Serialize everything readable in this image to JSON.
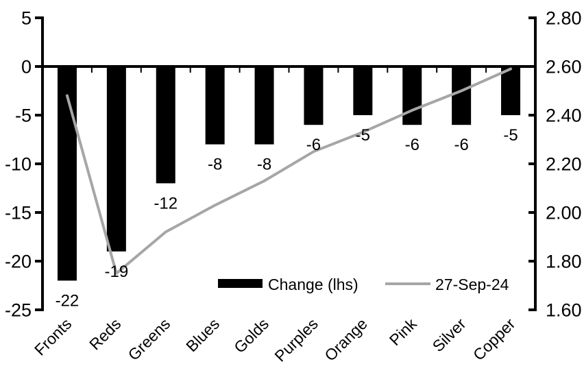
{
  "chart_data": {
    "type": "bar",
    "subtype": "combo-bar-line-dual-axis",
    "background": "#ffffff",
    "grid": false,
    "categories": [
      "Fronts",
      "Reds",
      "Greens",
      "Blues",
      "Golds",
      "Purples",
      "Orange",
      "Pink",
      "Silver",
      "Copper"
    ],
    "series": [
      {
        "name": "Change (lhs)",
        "type": "bar",
        "axis": "left",
        "color": "#000000",
        "values": [
          -22,
          -19,
          -12,
          -8,
          -8,
          -6,
          -5,
          -6,
          -6,
          -5
        ],
        "data_labels": [
          "-22",
          "-19",
          "-12",
          "-8",
          "-8",
          "-6",
          "-5",
          "-6",
          "-6",
          "-5"
        ]
      },
      {
        "name": "27-Sep-24",
        "type": "line",
        "axis": "right",
        "color": "#a6a6a6",
        "values": [
          2.48,
          1.75,
          1.92,
          2.03,
          2.13,
          2.25,
          2.33,
          2.42,
          2.5,
          2.59
        ]
      }
    ],
    "left_axis": {
      "min": -25,
      "max": 5,
      "tick_labels": [
        "5",
        "0",
        "-5",
        "-10",
        "-15",
        "-20",
        "-25"
      ],
      "color": "#000000"
    },
    "right_axis": {
      "min": 1.6,
      "max": 2.8,
      "tick_labels": [
        "2.80",
        "2.60",
        "2.40",
        "2.20",
        "2.00",
        "1.80",
        "1.60"
      ],
      "color": "#000000"
    },
    "legend": {
      "position": "inside-bottom-center",
      "entries": [
        {
          "label": "Change (lhs)",
          "swatch": "bar",
          "color": "#000000"
        },
        {
          "label": "27-Sep-24",
          "swatch": "line",
          "color": "#a6a6a6"
        }
      ]
    }
  }
}
